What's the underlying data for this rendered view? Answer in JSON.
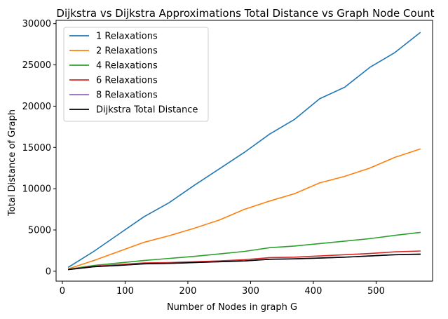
{
  "chart_data": {
    "type": "line",
    "title": "Dijkstra vs Dijkstra Approximations Total Distance vs Graph Node Count",
    "xlabel": "Number of Nodes in graph G",
    "ylabel": "Total Distance of Graph",
    "xlim": [
      -10,
      590
    ],
    "ylim": [
      -1200,
      30400
    ],
    "xticks": [
      0,
      100,
      200,
      300,
      400,
      500
    ],
    "yticks": [
      0,
      5000,
      10000,
      15000,
      20000,
      25000,
      30000
    ],
    "grid": false,
    "legend_position": "top-left",
    "x": [
      10,
      50,
      90,
      130,
      170,
      210,
      250,
      290,
      330,
      370,
      410,
      450,
      490,
      530,
      570
    ],
    "series": [
      {
        "name": "1 Relaxations",
        "color": "#1f77b4",
        "values": [
          500,
          2400,
          4500,
          6600,
          8300,
          10400,
          12400,
          14400,
          16600,
          18400,
          20900,
          22300,
          24700,
          26500,
          28900
        ]
      },
      {
        "name": "2 Relaxations",
        "color": "#ff7f0e",
        "values": [
          300,
          1300,
          2400,
          3500,
          4300,
          5200,
          6200,
          7500,
          8500,
          9400,
          10700,
          11500,
          12500,
          13800,
          14800
        ]
      },
      {
        "name": "4 Relaxations",
        "color": "#2ca02c",
        "values": [
          250,
          700,
          1000,
          1300,
          1550,
          1800,
          2100,
          2400,
          2850,
          3050,
          3350,
          3650,
          3950,
          4350,
          4700
        ]
      },
      {
        "name": "6 Relaxations",
        "color": "#d62728",
        "values": [
          220,
          600,
          800,
          1000,
          1050,
          1150,
          1250,
          1400,
          1650,
          1700,
          1850,
          2000,
          2150,
          2350,
          2450
        ]
      },
      {
        "name": "8 Relaxations",
        "color": "#9467bd",
        "values": [
          210,
          550,
          720,
          900,
          950,
          1050,
          1150,
          1250,
          1450,
          1500,
          1600,
          1700,
          1850,
          2000,
          2100
        ]
      },
      {
        "name": "Dijkstra Total Distance",
        "color": "#000000",
        "values": [
          200,
          550,
          700,
          900,
          950,
          1050,
          1150,
          1250,
          1450,
          1500,
          1600,
          1700,
          1850,
          2000,
          2050
        ]
      }
    ]
  }
}
